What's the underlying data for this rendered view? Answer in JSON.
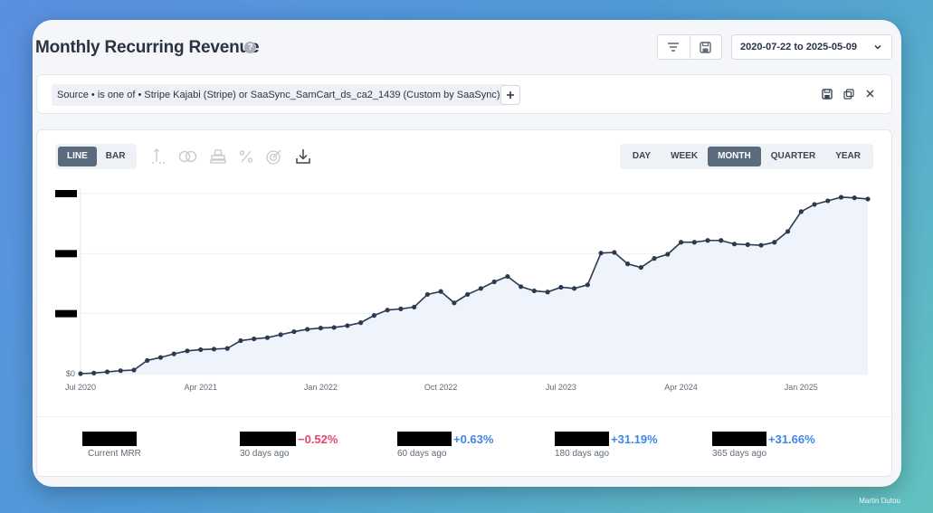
{
  "header": {
    "title": "Monthly Recurring Revenue",
    "help": "?",
    "date_range": "2020-07-22 to 2025-05-09"
  },
  "filter": {
    "text": "Source • is one of • Stripe Kajabi (Stripe) or SaaSync_SamCart_ds_ca2_1439 (Custom by SaaSync)",
    "add": "+"
  },
  "chart_controls": {
    "types": [
      {
        "label": "LINE",
        "active": true
      },
      {
        "label": "BAR",
        "active": false
      }
    ],
    "intervals": [
      {
        "label": "DAY",
        "active": false
      },
      {
        "label": "WEEK",
        "active": false
      },
      {
        "label": "MONTH",
        "active": true
      },
      {
        "label": "QUARTER",
        "active": false
      },
      {
        "label": "YEAR",
        "active": false
      }
    ]
  },
  "chart_data": {
    "type": "line",
    "ylim": [
      0,
      3
    ],
    "y_ticks": [
      {
        "value": 0,
        "label": "$0"
      },
      {
        "value": 1,
        "label": ""
      },
      {
        "value": 2,
        "label": ""
      },
      {
        "value": 3,
        "label": ""
      }
    ],
    "x_ticks": [
      "Jul 2020",
      "Apr 2021",
      "Jan 2022",
      "Oct 2022",
      "Jul 2023",
      "Apr 2024",
      "Jan 2025"
    ],
    "y_redacted": true,
    "grid": true,
    "line_color": "#2c3a4f",
    "fill_color": "#eef3fc",
    "values": [
      0,
      0.01,
      0.03,
      0.05,
      0.06,
      0.22,
      0.27,
      0.33,
      0.38,
      0.4,
      0.41,
      0.42,
      0.55,
      0.58,
      0.6,
      0.65,
      0.7,
      0.74,
      0.76,
      0.77,
      0.8,
      0.85,
      0.97,
      1.06,
      1.08,
      1.11,
      1.32,
      1.37,
      1.18,
      1.32,
      1.42,
      1.53,
      1.62,
      1.45,
      1.38,
      1.36,
      1.44,
      1.42,
      1.48,
      2.01,
      2.02,
      1.83,
      1.77,
      1.92,
      1.99,
      2.19,
      2.19,
      2.22,
      2.22,
      2.16,
      2.15,
      2.14,
      2.19,
      2.37,
      2.7,
      2.82,
      2.88,
      2.94,
      2.93,
      2.91
    ]
  },
  "stats": [
    {
      "label": "Current MRR",
      "change": ""
    },
    {
      "label": "30 days ago",
      "change": "−0.52%",
      "dir": "neg"
    },
    {
      "label": "60 days ago",
      "change": "+0.63%",
      "dir": "pos"
    },
    {
      "label": "180 days ago",
      "change": "+31.19%",
      "dir": "pos"
    },
    {
      "label": "365 days ago",
      "change": "+31.66%",
      "dir": "pos"
    }
  ],
  "credit": "Martin Dutou",
  "icons": {
    "toolbar": [
      "filter-lines-icon",
      "save-icon",
      "chevron-down-icon"
    ],
    "filter_actions": [
      "save-icon",
      "copy-icon",
      "close-icon"
    ],
    "chart_tools": [
      "axis-icon",
      "toggle-icon",
      "stack-icon",
      "percent-icon",
      "goal-icon",
      "download-icon"
    ]
  }
}
